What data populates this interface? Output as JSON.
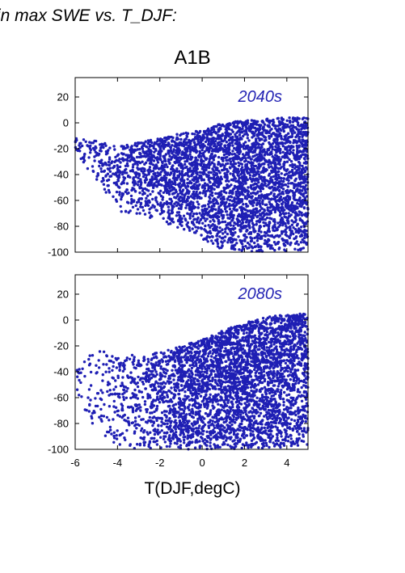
{
  "figure": {
    "heading": "in max SWE vs. T_DJF:",
    "scenario": "A1B"
  },
  "colors": {
    "points": "#1f1fb4",
    "period_label": "#2424b4",
    "axes": "#000000"
  },
  "chart_data": [
    {
      "type": "scatter",
      "label": "2040s",
      "xlim": [
        -6,
        5
      ],
      "ylim": [
        -100,
        35
      ],
      "x_ticks": [
        -6,
        -4,
        -2,
        0,
        2,
        4
      ],
      "y_ticks": [
        20,
        0,
        -20,
        -40,
        -60,
        -80,
        -100
      ],
      "show_x_tick_labels": false,
      "grid": false,
      "density_profile": [
        {
          "x": -6,
          "y_min": -22,
          "y_max": -12,
          "weight": 1
        },
        {
          "x": -5,
          "y_min": -45,
          "y_max": -14,
          "weight": 2
        },
        {
          "x": -4,
          "y_min": -68,
          "y_max": -17,
          "weight": 4
        },
        {
          "x": -3,
          "y_min": -72,
          "y_max": -15,
          "weight": 7
        },
        {
          "x": -2,
          "y_min": -76,
          "y_max": -12,
          "weight": 10
        },
        {
          "x": -1,
          "y_min": -84,
          "y_max": -8,
          "weight": 13
        },
        {
          "x": 0,
          "y_min": -92,
          "y_max": -5,
          "weight": 16
        },
        {
          "x": 1,
          "y_min": -98,
          "y_max": 0,
          "weight": 18
        },
        {
          "x": 2,
          "y_min": -100,
          "y_max": 2,
          "weight": 19
        },
        {
          "x": 3,
          "y_min": -100,
          "y_max": 3,
          "weight": 19
        },
        {
          "x": 4,
          "y_min": -100,
          "y_max": 4,
          "weight": 18
        },
        {
          "x": 5,
          "y_min": -100,
          "y_max": 4,
          "weight": 16
        }
      ]
    },
    {
      "type": "scatter",
      "label": "2080s",
      "xlim": [
        -6,
        5
      ],
      "ylim": [
        -100,
        35
      ],
      "x_ticks": [
        -6,
        -4,
        -2,
        0,
        2,
        4
      ],
      "x_tick_labels": [
        "-6",
        "-4",
        "-2",
        "0",
        "2",
        "4"
      ],
      "y_ticks": [
        20,
        0,
        -20,
        -40,
        -60,
        -80,
        -100
      ],
      "xlabel": "T(DJF,degC)",
      "show_x_tick_labels": true,
      "grid": false,
      "density_profile": [
        {
          "x": -6,
          "y_min": -60,
          "y_max": -38,
          "weight": 1
        },
        {
          "x": -5,
          "y_min": -90,
          "y_max": -22,
          "weight": 2
        },
        {
          "x": -4,
          "y_min": -98,
          "y_max": -25,
          "weight": 3
        },
        {
          "x": -3,
          "y_min": -100,
          "y_max": -28,
          "weight": 5
        },
        {
          "x": -2,
          "y_min": -100,
          "y_max": -25,
          "weight": 8
        },
        {
          "x": -1,
          "y_min": -100,
          "y_max": -20,
          "weight": 12
        },
        {
          "x": 0,
          "y_min": -100,
          "y_max": -15,
          "weight": 16
        },
        {
          "x": 1,
          "y_min": -100,
          "y_max": -8,
          "weight": 18
        },
        {
          "x": 2,
          "y_min": -100,
          "y_max": -2,
          "weight": 19
        },
        {
          "x": 3,
          "y_min": -100,
          "y_max": 2,
          "weight": 19
        },
        {
          "x": 4,
          "y_min": -100,
          "y_max": 5,
          "weight": 17
        },
        {
          "x": 5,
          "y_min": -100,
          "y_max": 5,
          "weight": 15
        }
      ]
    }
  ]
}
